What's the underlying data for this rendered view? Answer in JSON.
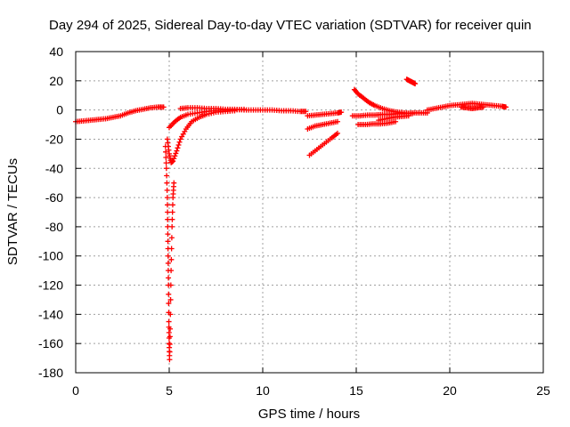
{
  "chart_data": {
    "type": "scatter",
    "title": "Day 294 of 2025, Sidereal Day-to-day VTEC variation (SDTVAR) for receiver quin",
    "xlabel": "GPS time / hours",
    "ylabel": "SDTVAR / TECUs",
    "xlim": [
      0,
      25
    ],
    "ylim": [
      -180,
      40
    ],
    "xticks": [
      "0",
      "5",
      "10",
      "15",
      "20",
      "25"
    ],
    "yticks": [
      "-180",
      "-160",
      "-140",
      "-120",
      "-100",
      "-80",
      "-60",
      "-40",
      "-20",
      "0",
      "20",
      "40"
    ],
    "grid": true,
    "marker": "+",
    "series": [
      {
        "name": "SDTVAR",
        "color": "#ff0000",
        "segments": [
          {
            "x": [
              0.0,
              0.4,
              0.8,
              1.2,
              1.6,
              2.0,
              2.4,
              2.8,
              3.2,
              3.6,
              4.0,
              4.4,
              4.7
            ],
            "y": [
              -8,
              -7.5,
              -7,
              -6.5,
              -6,
              -5,
              -4,
              -2,
              -0.5,
              0.5,
              1.5,
              2,
              2
            ]
          },
          {
            "x": [
              4.8,
              4.85,
              4.9,
              4.92,
              4.94,
              4.96,
              4.98,
              5.0,
              5.02,
              5.05,
              5.1,
              5.15,
              5.2,
              5.25
            ],
            "y": [
              -25,
              -40,
              -60,
              -80,
              -100,
              -120,
              -145,
              -160,
              -171,
              -150,
              -110,
              -80,
              -60,
              -50
            ]
          },
          {
            "x": [
              4.9,
              5.0,
              5.1,
              5.2,
              5.4,
              5.6,
              5.9,
              6.2,
              6.6,
              7.0,
              7.5,
              8.0,
              8.5
            ],
            "y": [
              -20,
              -30,
              -36,
              -35,
              -28,
              -20,
              -13,
              -8,
              -5,
              -3,
              -1.5,
              -1,
              -0.5
            ]
          },
          {
            "x": [
              5.0,
              5.3,
              5.6,
              6.0,
              6.5,
              7.0,
              7.5,
              8.0,
              8.5,
              9.0
            ],
            "y": [
              -12,
              -8,
              -5,
              -3,
              -2,
              -1,
              -0.5,
              0,
              0,
              0.5
            ]
          },
          {
            "x": [
              5.6,
              6.0,
              6.5,
              7.0,
              7.5,
              8.0,
              8.5,
              9.0,
              9.5,
              10.0,
              10.5,
              11.0,
              11.5,
              12.0,
              12.3
            ],
            "y": [
              1,
              1.5,
              1.5,
              1,
              1,
              0.5,
              0.5,
              0,
              0,
              0,
              0,
              -0.5,
              -0.5,
              -1,
              -1
            ]
          },
          {
            "x": [
              12.4,
              12.8,
              13.2,
              13.6,
              14.0,
              14.2
            ],
            "y": [
              -4,
              -3.5,
              -3,
              -2.5,
              -2,
              -1.5
            ]
          },
          {
            "x": [
              12.4,
              12.8,
              13.2,
              13.6,
              14.0
            ],
            "y": [
              -13,
              -11,
              -10,
              -9,
              -8
            ]
          },
          {
            "x": [
              12.5,
              12.9,
              13.3,
              13.7,
              14.0
            ],
            "y": [
              -31,
              -27,
              -23,
              -19,
              -16
            ]
          },
          {
            "x": [
              14.9,
              15.1,
              15.4,
              15.7,
              16.0,
              16.4,
              16.8,
              17.2,
              17.6,
              18.0
            ],
            "y": [
              14,
              11,
              8,
              5,
              3,
              1,
              -0.5,
              -1.5,
              -2,
              -2.5
            ]
          },
          {
            "x": [
              14.8,
              15.2,
              15.6,
              16.0,
              16.4,
              16.8,
              17.2,
              17.6,
              18.0,
              18.4,
              18.8
            ],
            "y": [
              -4,
              -4,
              -3.5,
              -3.5,
              -3,
              -3,
              -2.5,
              -2.5,
              -2,
              -2,
              -2
            ]
          },
          {
            "x": [
              15.1,
              15.5,
              15.9,
              16.3,
              16.7,
              17.1
            ],
            "y": [
              -10,
              -10,
              -9.5,
              -9.5,
              -9,
              -8
            ]
          },
          {
            "x": [
              16.2,
              16.6,
              17.0,
              17.4,
              17.8
            ],
            "y": [
              -7,
              -6,
              -5,
              -4.5,
              -4
            ]
          },
          {
            "x": [
              17.7,
              17.85,
              18.0,
              18.15
            ],
            "y": [
              21,
              20,
              19,
              18
            ]
          },
          {
            "x": [
              18.8,
              19.2,
              19.6,
              20.0,
              20.4,
              20.8,
              21.2,
              21.6,
              22.0,
              22.4,
              22.8,
              23.0
            ],
            "y": [
              0,
              1,
              2,
              3,
              3.5,
              4,
              4.5,
              4,
              3.5,
              3,
              2.5,
              2
            ]
          },
          {
            "x": [
              20.6,
              20.9,
              21.2,
              21.5,
              21.8
            ],
            "y": [
              2,
              1.5,
              1,
              1.5,
              2
            ]
          }
        ]
      }
    ]
  }
}
